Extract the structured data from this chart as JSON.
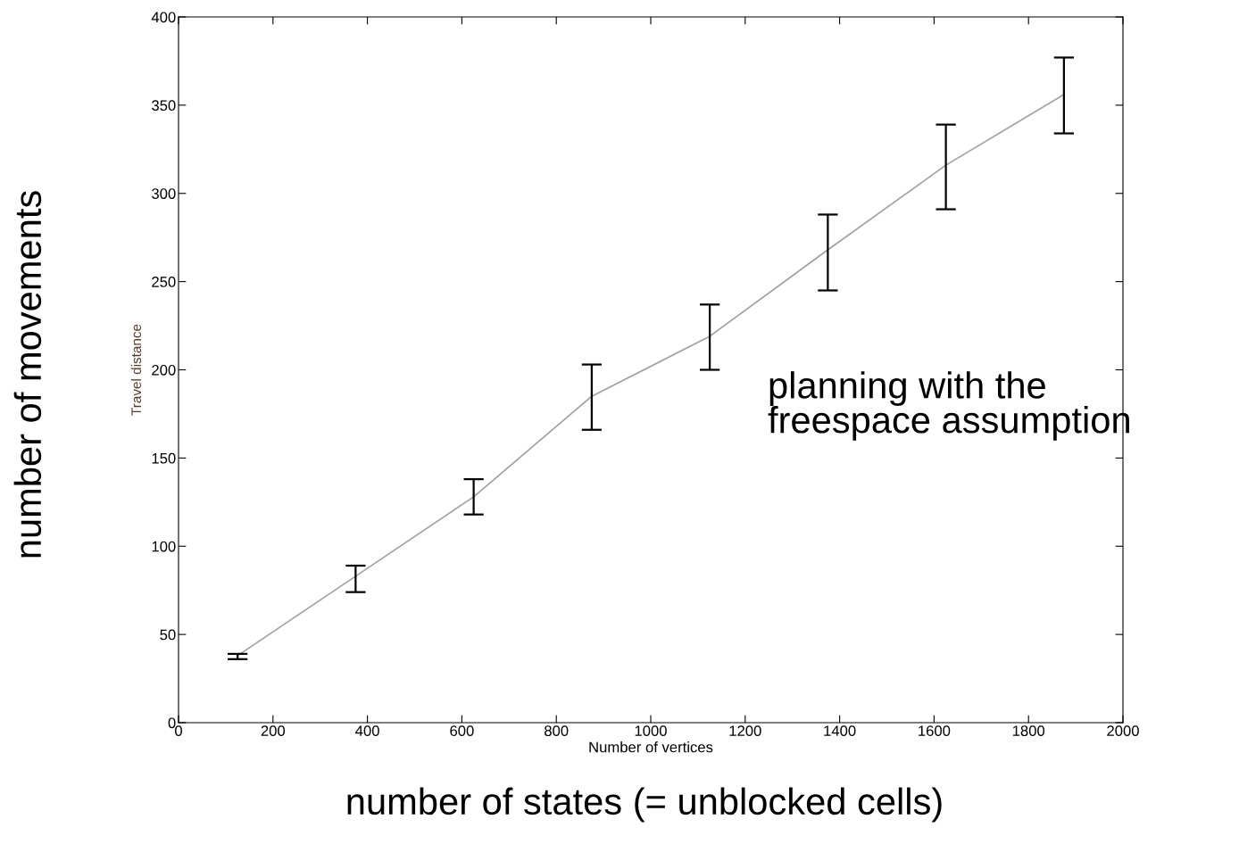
{
  "chart_data": {
    "type": "line",
    "xlabel": "Number of vertices",
    "ylabel": "Travel distance",
    "x": [
      125,
      375,
      625,
      875,
      1125,
      1375,
      1625,
      1875
    ],
    "series": [
      {
        "color": "#a0a0a0",
        "values": [
          38,
          83,
          128,
          185,
          219,
          268,
          316,
          356
        ],
        "errors": [
          [
            36,
            39
          ],
          [
            74,
            89
          ],
          [
            118,
            138
          ],
          [
            166,
            203
          ],
          [
            200,
            237
          ],
          [
            245,
            288
          ],
          [
            291,
            339
          ],
          [
            334,
            377
          ]
        ]
      }
    ],
    "xlim": [
      0,
      2000
    ],
    "xticks": [
      0,
      200,
      400,
      600,
      800,
      1000,
      1200,
      1400,
      1600,
      1800,
      2000
    ],
    "ylim": [
      0,
      400
    ],
    "yticks": [
      0,
      50,
      100,
      150,
      200,
      250,
      300,
      350,
      400
    ],
    "grid": false,
    "legend": false,
    "marker": "none",
    "line_style": "solid",
    "annotations": [
      "number of movements",
      "number of states (= unblocked cells)",
      "planning with the\nfreespace assumption"
    ]
  }
}
